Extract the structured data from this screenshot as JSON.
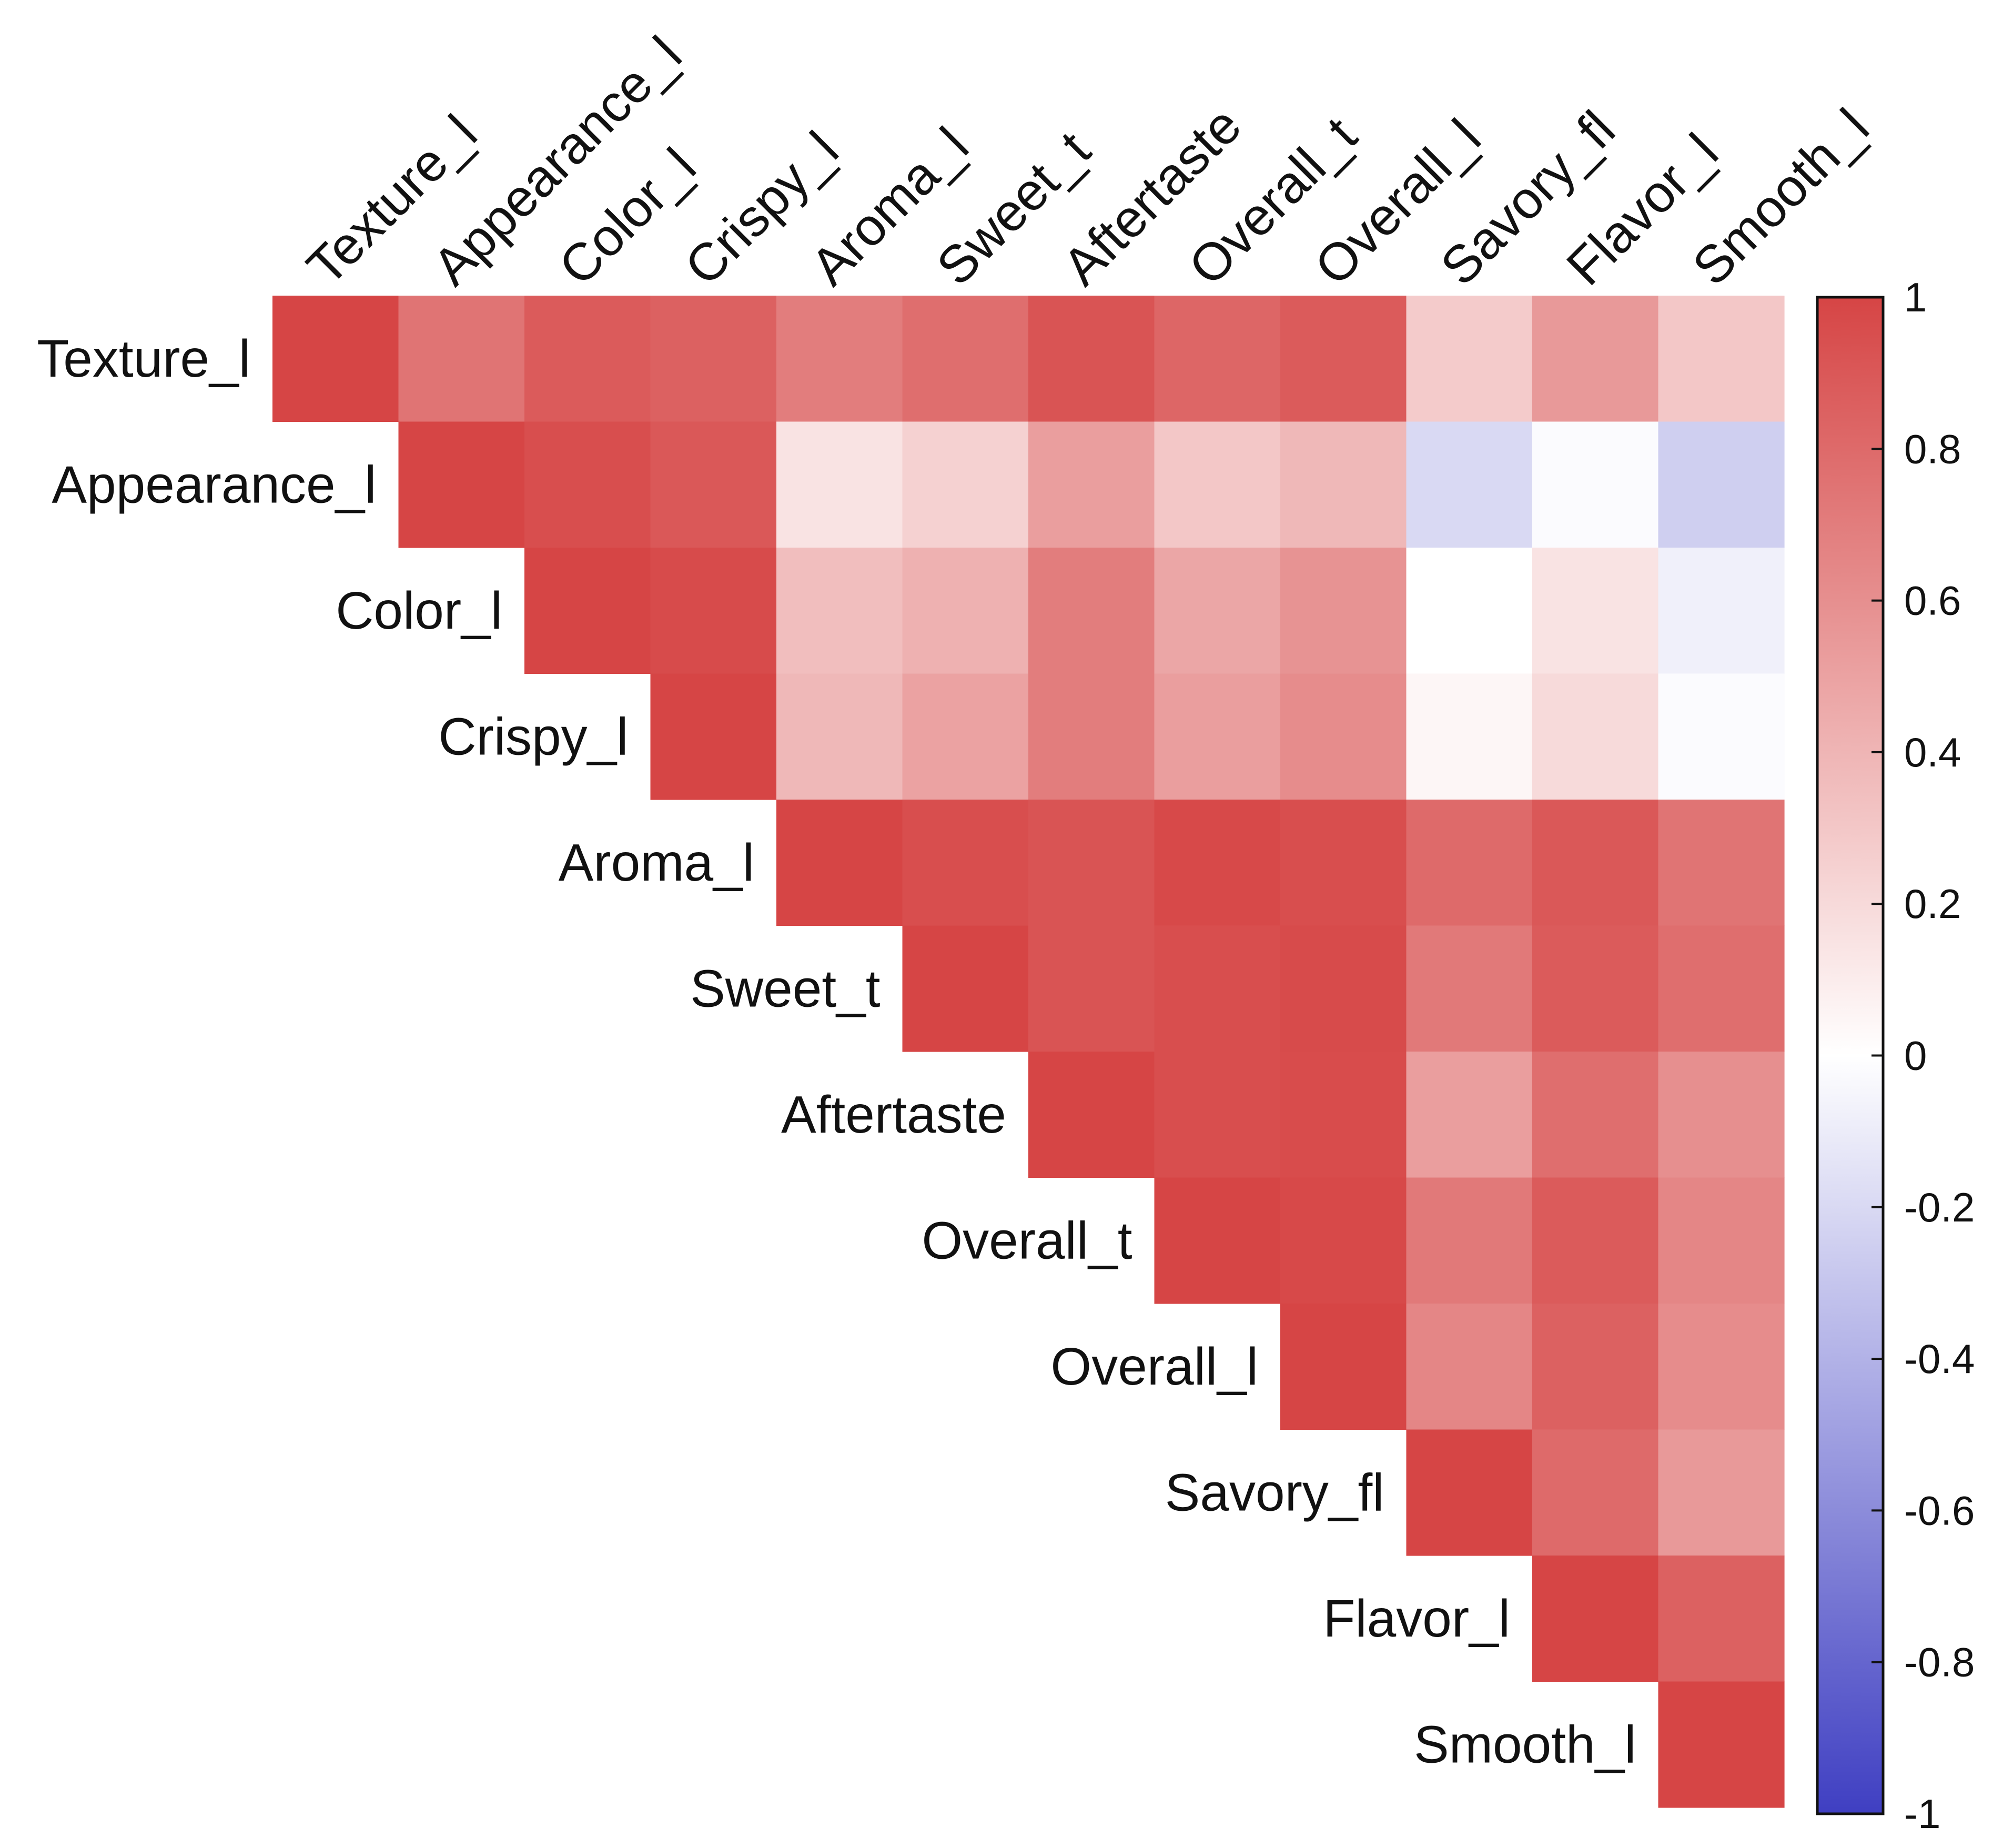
{
  "chart_data": {
    "type": "heatmap",
    "title": "",
    "xlabel": "",
    "ylabel": "",
    "layout": "upper-triangle",
    "variables": [
      "Texture_l",
      "Appearance_l",
      "Color_l",
      "Crispy_l",
      "Aroma_l",
      "Sweet_t",
      "Aftertaste",
      "Overall_t",
      "Overall_l",
      "Savory_fl",
      "Flavor_l",
      "Smooth_l"
    ],
    "matrix": [
      [
        1.0,
        0.75,
        0.88,
        0.85,
        0.7,
        0.78,
        0.92,
        0.82,
        0.88,
        0.28,
        0.55,
        0.3
      ],
      [
        null,
        1.0,
        0.95,
        0.9,
        0.15,
        0.25,
        0.52,
        0.3,
        0.38,
        -0.2,
        -0.02,
        -0.25
      ],
      [
        null,
        null,
        1.0,
        0.97,
        0.35,
        0.42,
        0.7,
        0.48,
        0.58,
        0.0,
        0.15,
        -0.08
      ],
      [
        null,
        null,
        null,
        1.0,
        0.38,
        0.5,
        0.7,
        0.52,
        0.62,
        0.05,
        0.2,
        -0.02
      ],
      [
        null,
        null,
        null,
        null,
        1.0,
        0.95,
        0.92,
        0.98,
        0.95,
        0.8,
        0.9,
        0.75
      ],
      [
        null,
        null,
        null,
        null,
        null,
        1.0,
        0.92,
        0.95,
        0.97,
        0.72,
        0.88,
        0.78
      ],
      [
        null,
        null,
        null,
        null,
        null,
        null,
        1.0,
        0.95,
        0.96,
        0.52,
        0.78,
        0.6
      ],
      [
        null,
        null,
        null,
        null,
        null,
        null,
        null,
        1.0,
        0.98,
        0.72,
        0.88,
        0.65
      ],
      [
        null,
        null,
        null,
        null,
        null,
        null,
        null,
        null,
        1.0,
        0.65,
        0.85,
        0.62
      ],
      [
        null,
        null,
        null,
        null,
        null,
        null,
        null,
        null,
        null,
        1.0,
        0.8,
        0.55
      ],
      [
        null,
        null,
        null,
        null,
        null,
        null,
        null,
        null,
        null,
        null,
        1.0,
        0.85
      ],
      [
        null,
        null,
        null,
        null,
        null,
        null,
        null,
        null,
        null,
        null,
        null,
        1.0
      ]
    ],
    "color_scale": {
      "min": -1,
      "max": 1,
      "low_color": "#3F3FC2",
      "mid_color": "#FFFFFF",
      "high_color": "#D64545",
      "ticks": [
        "1",
        "0.8",
        "0.6",
        "0.4",
        "0.2",
        "0",
        "-0.2",
        "-0.4",
        "-0.6",
        "-0.8",
        "-1"
      ]
    },
    "grid": false,
    "legend": "right colorbar"
  }
}
